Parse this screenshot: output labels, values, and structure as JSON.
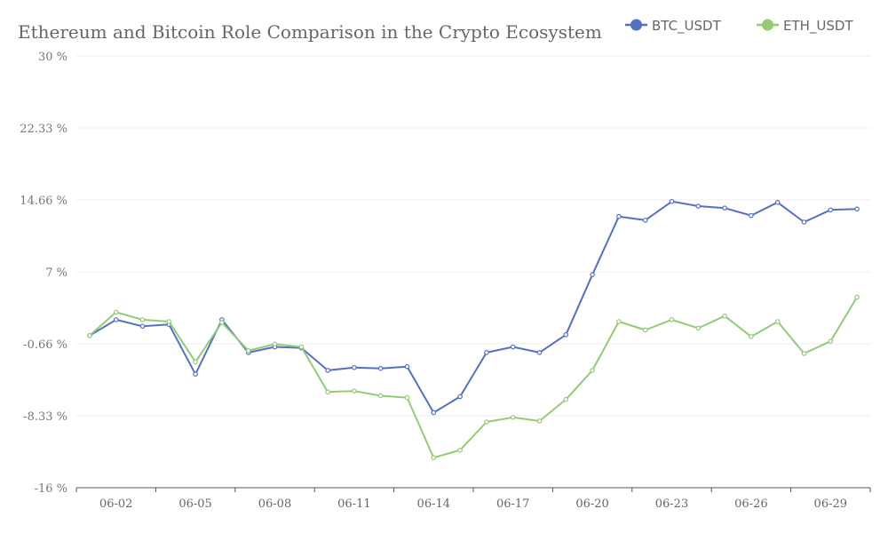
{
  "chart_data": {
    "type": "line",
    "title": "Ethereum and Bitcoin Role Comparison in the Crypto Ecosystem",
    "xlabel": "",
    "ylabel": "",
    "x": [
      "06-01",
      "06-02",
      "06-03",
      "06-04",
      "06-05",
      "06-06",
      "06-07",
      "06-08",
      "06-09",
      "06-10",
      "06-11",
      "06-12",
      "06-13",
      "06-14",
      "06-15",
      "06-16",
      "06-17",
      "06-18",
      "06-19",
      "06-20",
      "06-21",
      "06-22",
      "06-23",
      "06-24",
      "06-25",
      "06-26",
      "06-27",
      "06-28",
      "06-29",
      "06-30"
    ],
    "x_tick_labels": [
      "06-02",
      "06-05",
      "06-08",
      "06-11",
      "06-14",
      "06-17",
      "06-20",
      "06-23",
      "06-26",
      "06-29"
    ],
    "y_tick_labels": [
      "30 %",
      "22.33 %",
      "14.66 %",
      "7 %",
      "-0.66 %",
      "-8.33 %",
      "-16 %"
    ],
    "ylim": [
      -16,
      30
    ],
    "legend_position": "top-right",
    "grid": true,
    "series": [
      {
        "name": "BTC_USDT",
        "color": "#5470c6",
        "values": [
          0.2,
          1.9,
          1.2,
          1.4,
          -3.9,
          1.9,
          -1.6,
          -1.0,
          -1.1,
          -3.5,
          -3.2,
          -3.3,
          -3.1,
          -8.0,
          -6.3,
          -1.6,
          -1.0,
          -1.6,
          0.3,
          6.7,
          12.9,
          12.5,
          14.5,
          14.0,
          13.8,
          13.0,
          14.4,
          12.3,
          13.6,
          13.7
        ]
      },
      {
        "name": "ETH_USDT",
        "color": "#91cc75",
        "values": [
          0.2,
          2.7,
          1.9,
          1.7,
          -2.6,
          1.6,
          -1.4,
          -0.7,
          -1.0,
          -5.8,
          -5.7,
          -6.2,
          -6.4,
          -12.8,
          -12.0,
          -9.0,
          -8.5,
          -8.9,
          -6.6,
          -3.5,
          1.7,
          0.8,
          1.9,
          1.0,
          2.3,
          0.1,
          1.7,
          -1.7,
          -0.4,
          4.3
        ]
      }
    ]
  }
}
